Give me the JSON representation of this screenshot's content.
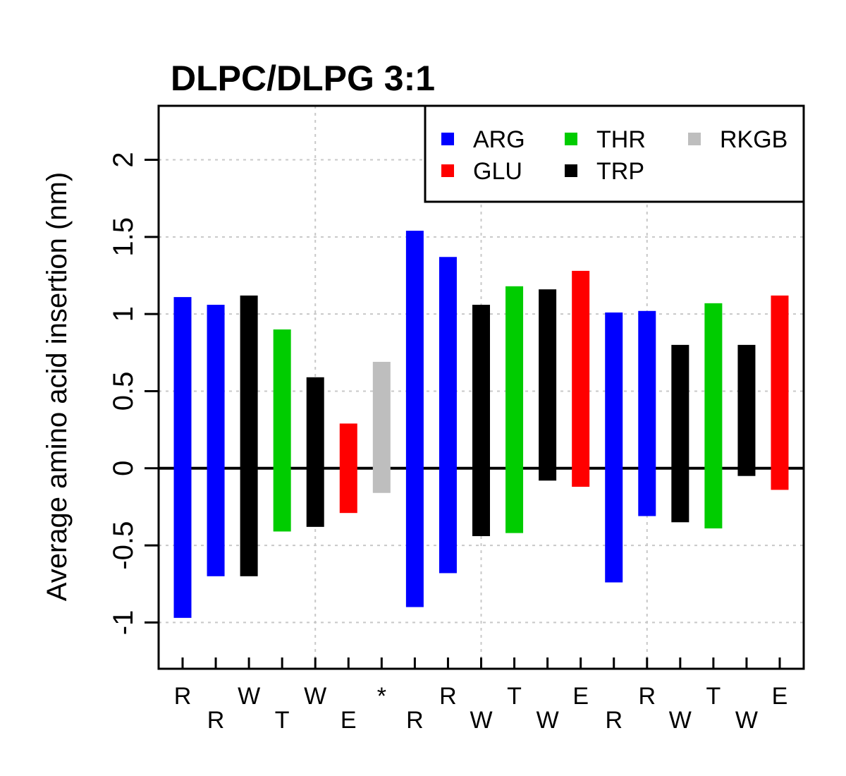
{
  "chart_data": {
    "type": "bar",
    "title": "DLPC/DLPG 3:1",
    "ylabel": "Average amino acid insertion (nm)",
    "xlabel": "",
    "ylim": [
      -1.3,
      2.35
    ],
    "yticks": [
      "-1",
      "-0.5",
      "0",
      "0.5",
      "1",
      "1.5",
      "2"
    ],
    "grid": true,
    "legend_position": "top-right",
    "legend": [
      {
        "name": "ARG",
        "color": "#0000ff"
      },
      {
        "name": "GLU",
        "color": "#ff0000"
      },
      {
        "name": "THR",
        "color": "#00cc00"
      },
      {
        "name": "TRP",
        "color": "#000000"
      },
      {
        "name": "RKGB",
        "color": "#bebebe"
      }
    ],
    "categories": [
      "R",
      "R",
      "W",
      "T",
      "W",
      "E",
      "*",
      "R",
      "R",
      "W",
      "T",
      "W",
      "E",
      "R",
      "R",
      "W",
      "T",
      "W",
      "E"
    ],
    "bars": [
      {
        "label": "R",
        "type": "ARG",
        "min": -0.97,
        "max": 1.11
      },
      {
        "label": "R",
        "type": "ARG",
        "min": -0.7,
        "max": 1.06
      },
      {
        "label": "W",
        "type": "TRP",
        "min": -0.7,
        "max": 1.12
      },
      {
        "label": "T",
        "type": "THR",
        "min": -0.41,
        "max": 0.9
      },
      {
        "label": "W",
        "type": "TRP",
        "min": -0.38,
        "max": 0.59
      },
      {
        "label": "E",
        "type": "GLU",
        "min": -0.29,
        "max": 0.29
      },
      {
        "label": "*",
        "type": "RKGB",
        "min": -0.16,
        "max": 0.69
      },
      {
        "label": "R",
        "type": "ARG",
        "min": -0.9,
        "max": 1.54
      },
      {
        "label": "R",
        "type": "ARG",
        "min": -0.68,
        "max": 1.37
      },
      {
        "label": "W",
        "type": "TRP",
        "min": -0.44,
        "max": 1.06
      },
      {
        "label": "T",
        "type": "THR",
        "min": -0.42,
        "max": 1.18
      },
      {
        "label": "W",
        "type": "TRP",
        "min": -0.08,
        "max": 1.16
      },
      {
        "label": "E",
        "type": "GLU",
        "min": -0.12,
        "max": 1.28
      },
      {
        "label": "R",
        "type": "ARG",
        "min": -0.74,
        "max": 1.01
      },
      {
        "label": "R",
        "type": "ARG",
        "min": -0.31,
        "max": 1.02
      },
      {
        "label": "W",
        "type": "TRP",
        "min": -0.35,
        "max": 0.8
      },
      {
        "label": "T",
        "type": "THR",
        "min": -0.39,
        "max": 1.07
      },
      {
        "label": "W",
        "type": "TRP",
        "min": -0.05,
        "max": 0.8
      },
      {
        "label": "E",
        "type": "GLU",
        "min": -0.14,
        "max": 1.12
      }
    ]
  }
}
